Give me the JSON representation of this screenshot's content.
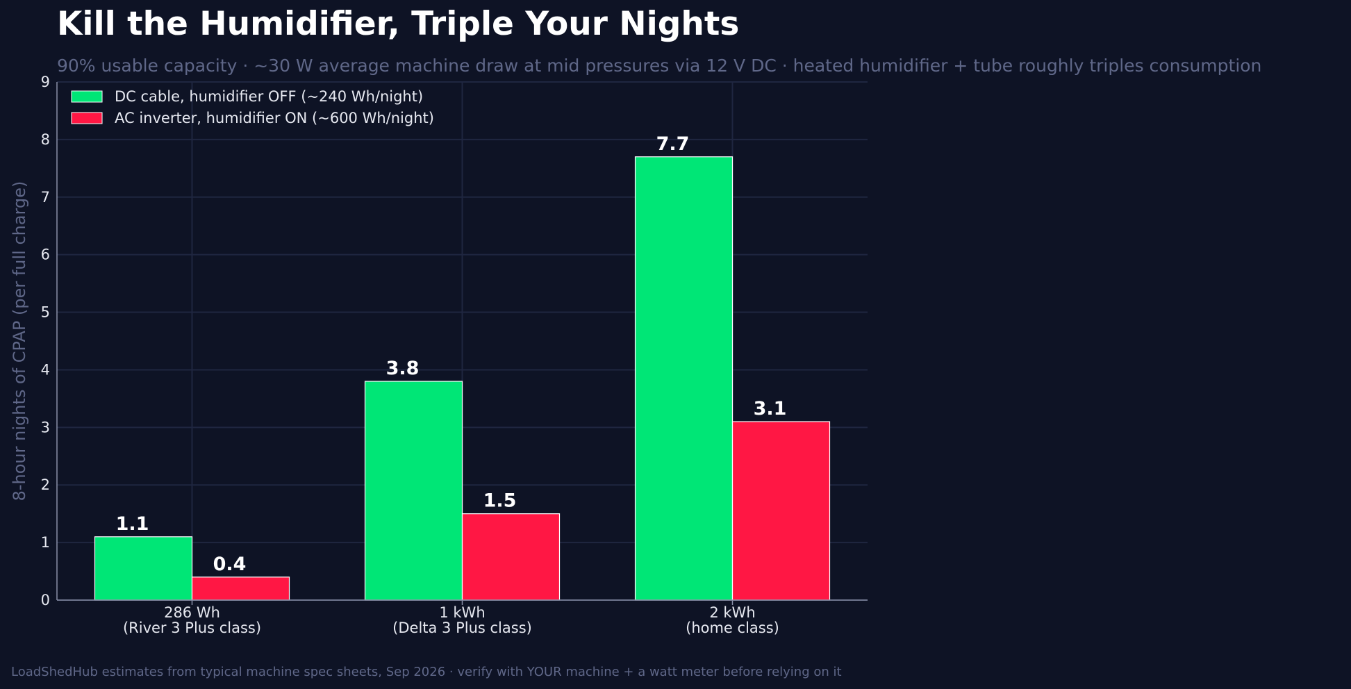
{
  "chart_data": {
    "type": "bar",
    "title": "Kill the Humidifier, Triple Your Nights",
    "subtitle": "90% usable capacity · ~30 W average machine draw at mid pressures via 12 V DC · heated humidifier + tube roughly triples consumption",
    "ylabel": "8-hour nights of CPAP (per full charge)",
    "xlabel": "",
    "ylim": [
      0,
      9
    ],
    "yticks": [
      "0",
      "1",
      "2",
      "3",
      "4",
      "5",
      "6",
      "7",
      "8",
      "9"
    ],
    "grid": true,
    "legend_position": "top-left",
    "categories": [
      [
        "286 Wh",
        "(River 3 Plus class)"
      ],
      [
        "1 kWh",
        "(Delta 3 Plus class)"
      ],
      [
        "2 kWh",
        "(home class)"
      ]
    ],
    "series": [
      {
        "name": "DC cable, humidifier OFF (~240 Wh/night)",
        "values": [
          1.1,
          3.8,
          7.7
        ],
        "labels": [
          "1.1",
          "3.8",
          "7.7"
        ],
        "color": "#00e676"
      },
      {
        "name": "AC inverter, humidifier ON (~600 Wh/night)",
        "values": [
          0.4,
          1.5,
          3.1
        ],
        "labels": [
          "0.4",
          "1.5",
          "3.1"
        ],
        "color": "#ff1744"
      }
    ],
    "footer": "LoadShedHub estimates from typical machine spec sheets, Sep 2026 · verify with YOUR machine + a watt meter before relying on it"
  }
}
